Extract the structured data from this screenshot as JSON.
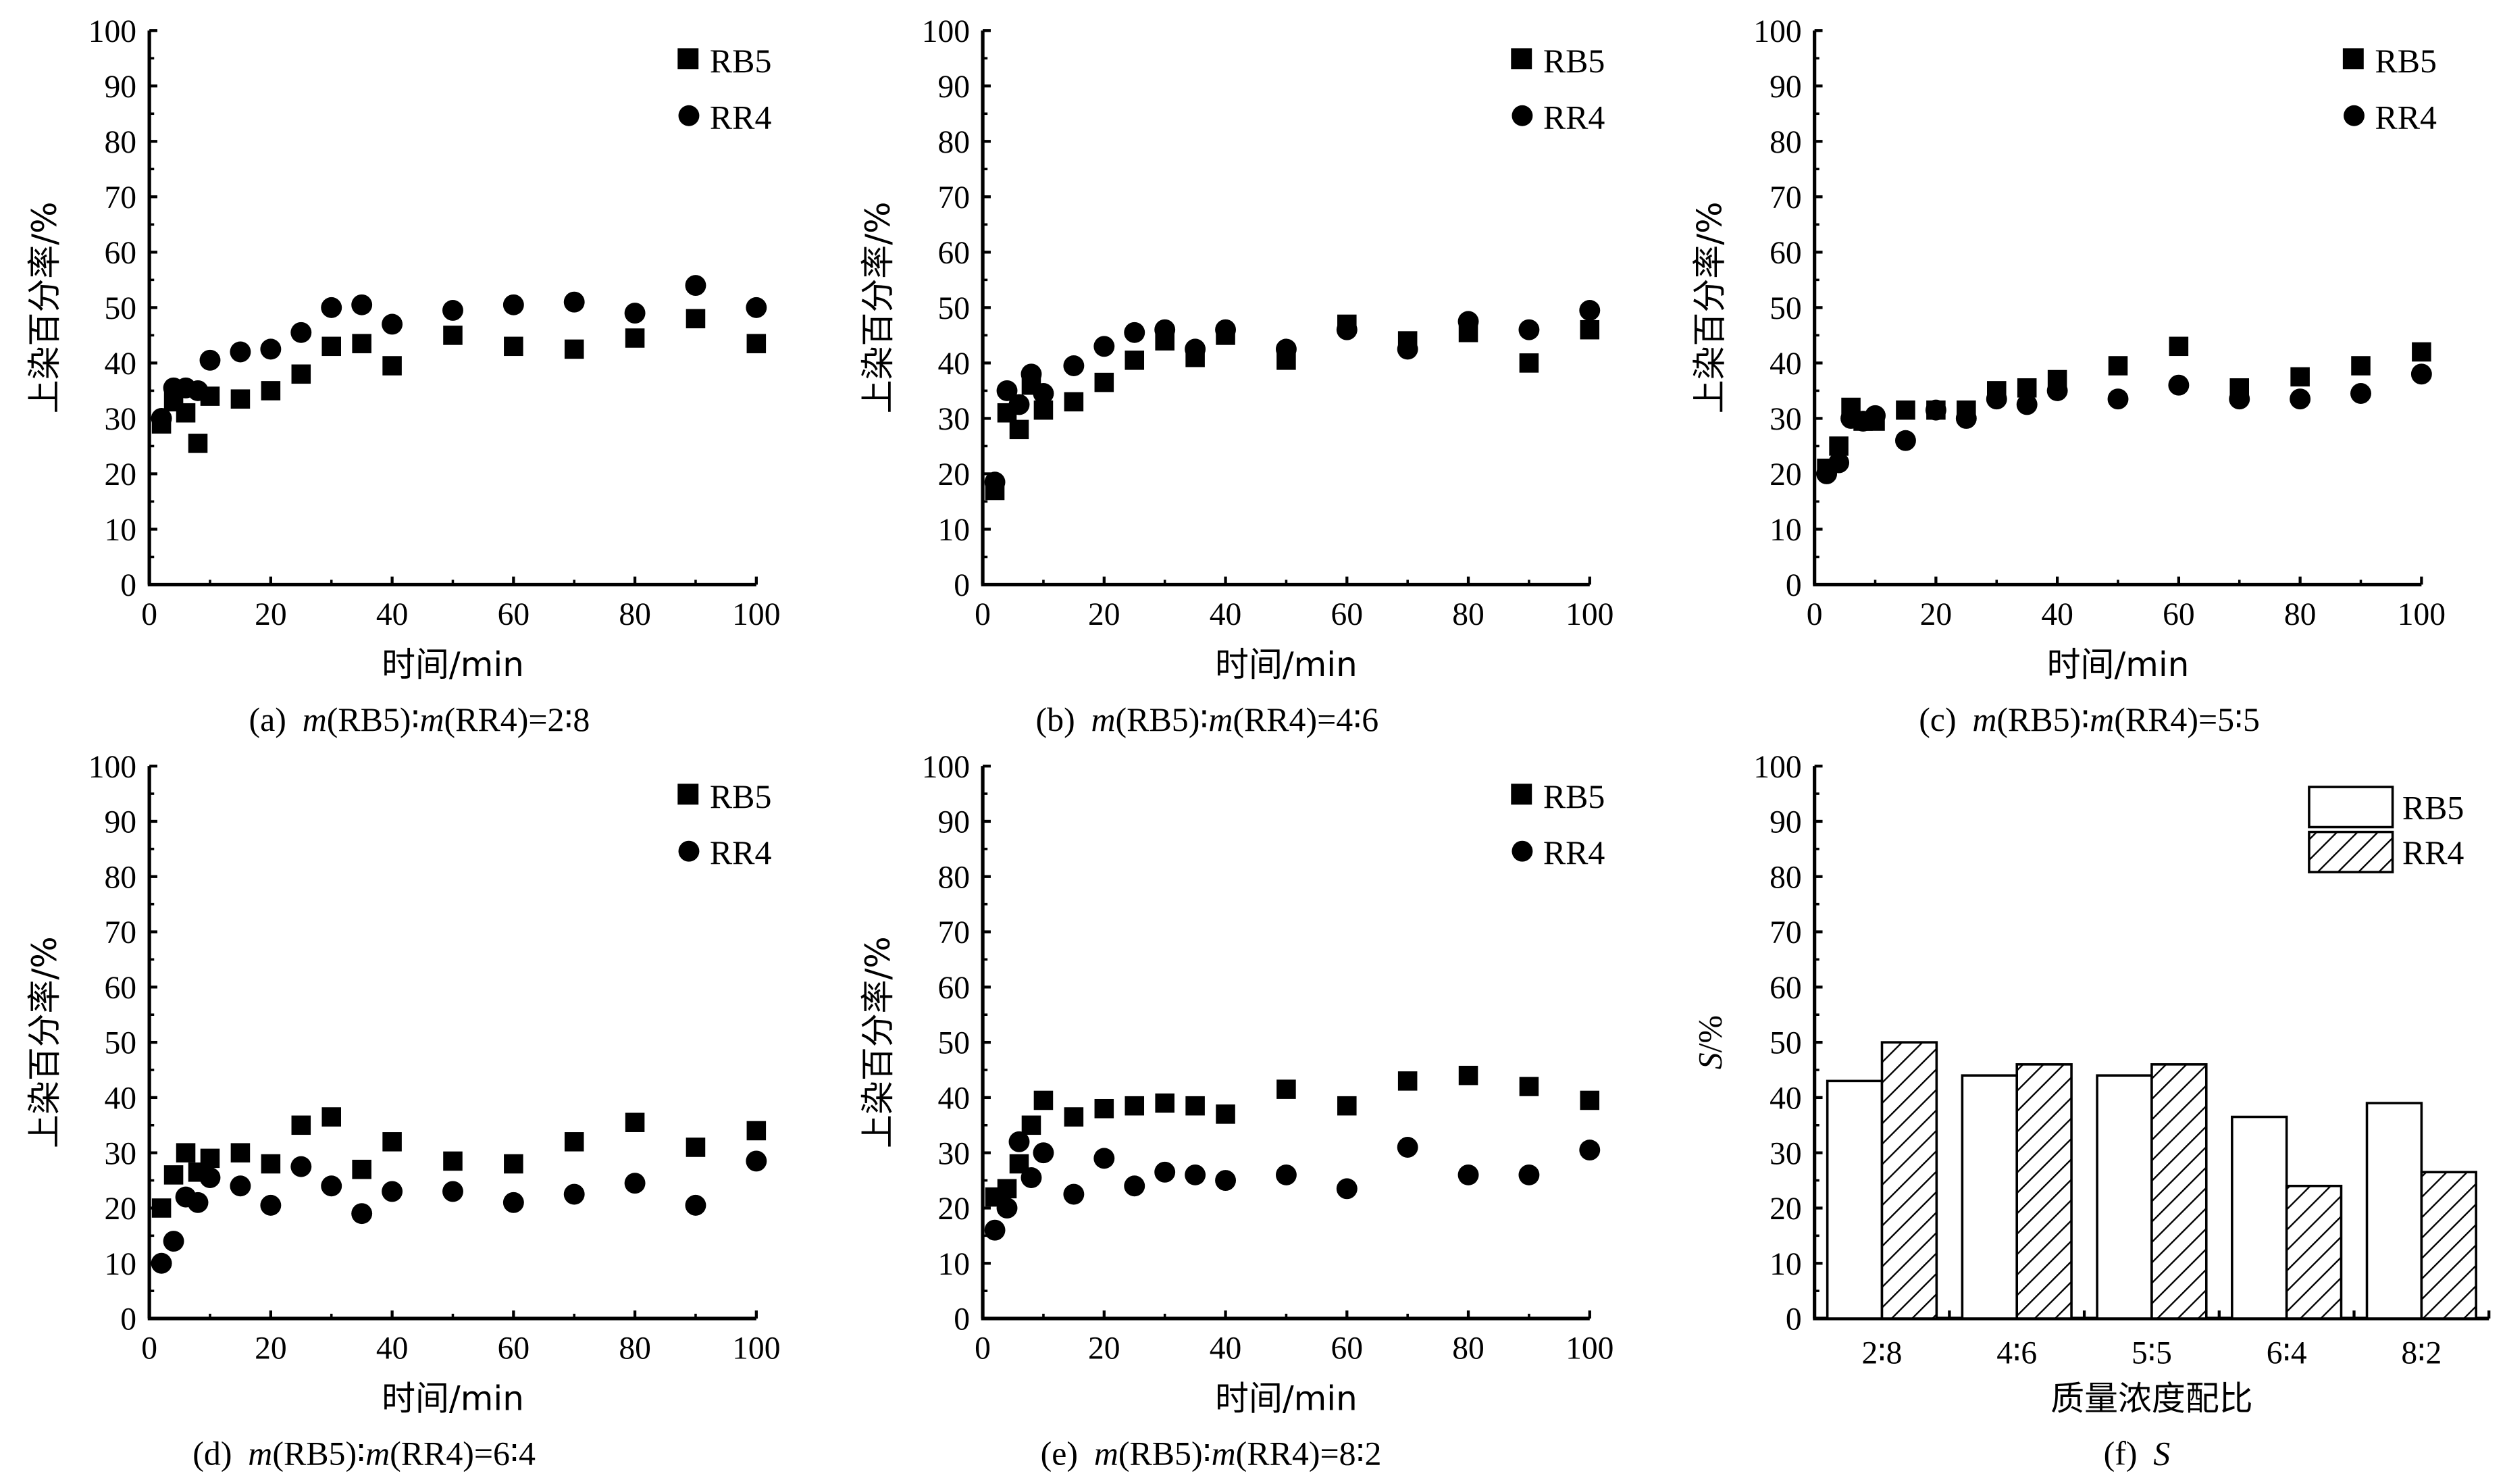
{
  "chart_data": [
    {
      "type": "scatter",
      "panel": "a",
      "caption": {
        "label": "(a)",
        "parts": [
          "m",
          "(RB5)∶",
          "m",
          "(RR4)=2∶8"
        ]
      },
      "xlabel": "时间/min",
      "ylabel": "上染百分率/%",
      "xlim": [
        0,
        100
      ],
      "ylim": [
        0,
        100
      ],
      "xticks": [
        0,
        20,
        40,
        60,
        80,
        100
      ],
      "yticks": [
        0,
        10,
        20,
        30,
        40,
        50,
        60,
        70,
        80,
        90,
        100
      ],
      "legend": "top-right",
      "x": [
        2,
        4,
        6,
        8,
        10,
        15,
        20,
        25,
        30,
        35,
        40,
        50,
        60,
        70,
        80,
        90,
        100
      ],
      "series": [
        {
          "name": "RB5",
          "marker": "square",
          "values": [
            29,
            33,
            31,
            25.5,
            34,
            33.5,
            35,
            38,
            43,
            43.5,
            39.5,
            45,
            43,
            42.5,
            44.5,
            48,
            43.5
          ]
        },
        {
          "name": "RR4",
          "marker": "circle",
          "values": [
            30,
            35.5,
            35.5,
            35,
            40.5,
            42,
            42.5,
            45.5,
            50,
            50.5,
            47,
            49.5,
            50.5,
            51,
            49,
            54,
            50
          ]
        }
      ]
    },
    {
      "type": "scatter",
      "panel": "b",
      "caption": {
        "label": "(b)",
        "parts": [
          "m",
          "(RB5)∶",
          "m",
          "(RR4)=4∶6"
        ]
      },
      "xlabel": "时间/min",
      "ylabel": "上染百分率/%",
      "xlim": [
        0,
        100
      ],
      "ylim": [
        0,
        100
      ],
      "xticks": [
        0,
        20,
        40,
        60,
        80,
        100
      ],
      "yticks": [
        0,
        10,
        20,
        30,
        40,
        50,
        60,
        70,
        80,
        90,
        100
      ],
      "legend": "top-right",
      "x": [
        2,
        4,
        6,
        8,
        10,
        15,
        20,
        25,
        30,
        35,
        40,
        50,
        60,
        70,
        80,
        90,
        100
      ],
      "series": [
        {
          "name": "RB5",
          "marker": "square",
          "values": [
            17,
            31,
            28,
            36,
            31.5,
            33,
            36.5,
            40.5,
            44,
            41,
            45,
            40.5,
            47,
            44,
            45.5,
            40,
            46
          ]
        },
        {
          "name": "RR4",
          "marker": "circle",
          "values": [
            18.5,
            35,
            32.5,
            38,
            34.5,
            39.5,
            43,
            45.5,
            46,
            42.5,
            46,
            42.5,
            46,
            42.5,
            47.5,
            46,
            49.5
          ]
        }
      ]
    },
    {
      "type": "scatter",
      "panel": "c",
      "caption": {
        "label": "(c)",
        "parts": [
          "m",
          "(RB5)∶",
          "m",
          "(RR4)=5∶5"
        ]
      },
      "xlabel": "时间/min",
      "ylabel": "上染百分率/%",
      "xlim": [
        0,
        100
      ],
      "ylim": [
        0,
        100
      ],
      "xticks": [
        0,
        20,
        40,
        60,
        80,
        100
      ],
      "yticks": [
        0,
        10,
        20,
        30,
        40,
        50,
        60,
        70,
        80,
        90,
        100
      ],
      "legend": "top-right",
      "x": [
        2,
        4,
        6,
        8,
        10,
        15,
        20,
        25,
        30,
        35,
        40,
        50,
        60,
        70,
        80,
        90,
        100
      ],
      "series": [
        {
          "name": "RB5",
          "marker": "square",
          "values": [
            21,
            25,
            32,
            29.5,
            29.5,
            31.5,
            31.5,
            31.5,
            35,
            35.5,
            37,
            39.5,
            43,
            35.5,
            37.5,
            39.5,
            42
          ]
        },
        {
          "name": "RR4",
          "marker": "circle",
          "values": [
            20,
            22,
            30,
            29.5,
            30.5,
            26,
            31.5,
            30,
            33.5,
            32.5,
            35,
            33.5,
            36,
            33.5,
            33.5,
            34.5,
            38
          ]
        }
      ]
    },
    {
      "type": "scatter",
      "panel": "d",
      "caption": {
        "label": "(d)",
        "parts": [
          "m",
          "(RB5)∶",
          "m",
          "(RR4)=6∶4"
        ]
      },
      "xlabel": "时间/min",
      "ylabel": "上染百分率/%",
      "xlim": [
        0,
        100
      ],
      "ylim": [
        0,
        100
      ],
      "xticks": [
        0,
        20,
        40,
        60,
        80,
        100
      ],
      "yticks": [
        0,
        10,
        20,
        30,
        40,
        50,
        60,
        70,
        80,
        90,
        100
      ],
      "legend": "top-right",
      "x": [
        2,
        4,
        6,
        8,
        10,
        15,
        20,
        25,
        30,
        35,
        40,
        50,
        60,
        70,
        80,
        90,
        100
      ],
      "series": [
        {
          "name": "RB5",
          "marker": "square",
          "values": [
            20,
            26,
            30,
            26.5,
            29,
            30,
            28,
            35,
            36.5,
            27,
            32,
            28.5,
            28,
            32,
            35.5,
            31,
            34
          ]
        },
        {
          "name": "RR4",
          "marker": "circle",
          "values": [
            10,
            14,
            22,
            21,
            25.5,
            24,
            20.5,
            27.5,
            24,
            19,
            23,
            23,
            21,
            22.5,
            24.5,
            20.5,
            28.5
          ]
        }
      ]
    },
    {
      "type": "scatter",
      "panel": "e",
      "caption": {
        "label": "(e)",
        "parts": [
          "m",
          "(RB5)∶",
          "m",
          "(RR4)=8∶2"
        ]
      },
      "xlabel": "时间/min",
      "ylabel": "上染百分率/%",
      "xlim": [
        0,
        100
      ],
      "ylim": [
        0,
        100
      ],
      "xticks": [
        0,
        20,
        40,
        60,
        80,
        100
      ],
      "yticks": [
        0,
        10,
        20,
        30,
        40,
        50,
        60,
        70,
        80,
        90,
        100
      ],
      "legend": "top-right",
      "x": [
        2,
        4,
        6,
        8,
        10,
        15,
        20,
        25,
        30,
        35,
        40,
        50,
        60,
        70,
        80,
        90,
        100
      ],
      "series": [
        {
          "name": "RB5",
          "marker": "square",
          "values": [
            22,
            23.5,
            28,
            35,
            39.5,
            36.5,
            38,
            38.5,
            39,
            38.5,
            37,
            41.5,
            38.5,
            43,
            44,
            42,
            39.5
          ]
        },
        {
          "name": "RR4",
          "marker": "circle",
          "values": [
            16,
            20,
            32,
            25.5,
            30,
            22.5,
            29,
            24,
            26.5,
            26,
            25,
            26,
            23.5,
            31,
            26,
            26,
            30.5
          ]
        }
      ]
    },
    {
      "type": "bar",
      "panel": "f",
      "caption": {
        "label": "(f)",
        "parts": [
          "S"
        ]
      },
      "xlabel": "质量浓度配比",
      "ylabel_italic": "S",
      "ylabel_rest": "/%",
      "ylim": [
        0,
        100
      ],
      "yticks": [
        0,
        10,
        20,
        30,
        40,
        50,
        60,
        70,
        80,
        90,
        100
      ],
      "legend": "top-right",
      "categories": [
        "2∶8",
        "4∶6",
        "5∶5",
        "6∶4",
        "8∶2"
      ],
      "series": [
        {
          "name": "RB5",
          "fill": "white",
          "values": [
            43,
            44,
            44,
            36.5,
            39
          ]
        },
        {
          "name": "RR4",
          "fill": "hatched",
          "values": [
            50,
            46,
            46,
            24,
            26.5
          ]
        }
      ]
    }
  ]
}
